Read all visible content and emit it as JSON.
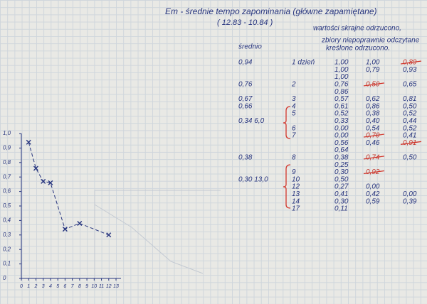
{
  "header": {
    "title": "Em - średnie tempo zapominania (główne zapamiętane)",
    "subtitle": "( 12.83 - 10.84 )",
    "notes": [
      "wartości skrajne odrzucono,",
      "zbiory niepoprawnie odczytane",
      "kreślone odrzucono."
    ]
  },
  "table": {
    "avg_header": "średnio",
    "rows": [
      {
        "avg": "0,94",
        "day": "1 dzień",
        "cols": [
          "1,00",
          "1,00",
          {
            "text": "0,89",
            "struck": true
          }
        ]
      },
      {
        "cols": [
          "1,00",
          "0,79",
          "0,93"
        ]
      },
      {
        "cols": [
          "1,00",
          null,
          null
        ]
      },
      {
        "avg": "0,76",
        "day": "2",
        "cols": [
          "0,76",
          {
            "text": "0,50",
            "struck": true
          },
          "0,65"
        ]
      },
      {
        "cols": [
          "0,86",
          null,
          null
        ]
      },
      {
        "avg": "0,67",
        "day": "3",
        "cols": [
          "0,57",
          "0,62",
          "0,81"
        ]
      },
      {
        "avg": "0,66",
        "day": "4",
        "cols": [
          "0,61",
          "0,86",
          "0,50"
        ]
      },
      {
        "day": "5",
        "cols": [
          "0,52",
          "0,38",
          "0,52"
        ]
      },
      {
        "avg": "0,34  6,0",
        "cols": [
          "0,33",
          "0,40",
          "0,44"
        ]
      },
      {
        "day": "6",
        "cols": [
          "0,00",
          "0,54",
          "0,52"
        ]
      },
      {
        "day": "7",
        "cols": [
          "0,00",
          {
            "text": "0,70",
            "struck": true
          },
          "0,41"
        ]
      },
      {
        "cols": [
          "0,56",
          "0,46",
          {
            "text": "0,91",
            "struck": true
          }
        ]
      },
      {
        "cols": [
          "0,64",
          null,
          null
        ]
      },
      {
        "avg": "0,38",
        "day": "8",
        "cols": [
          "0,38",
          {
            "text": "0,74",
            "struck": true
          },
          "0,50"
        ]
      },
      {
        "cols": [
          "0,25",
          null,
          null
        ]
      },
      {
        "day": "9",
        "cols": [
          "0,30",
          {
            "text": "0,92",
            "struck": true
          },
          null
        ]
      },
      {
        "avg": "0,30  13,0",
        "day": "10",
        "cols": [
          "0,50",
          null,
          null
        ]
      },
      {
        "day": "12",
        "cols": [
          "0,27",
          "0,00",
          null
        ]
      },
      {
        "day": "13",
        "cols": [
          "0,41",
          "0,42",
          "0,00"
        ]
      },
      {
        "day": "14",
        "cols": [
          "0,30",
          "0,59",
          "0,39"
        ]
      },
      {
        "day": "17",
        "cols": [
          "0,11",
          null,
          null
        ]
      }
    ]
  },
  "chart": {
    "xlim": [
      0,
      13
    ],
    "ylim": [
      0,
      1
    ],
    "xticks": [
      0,
      1,
      2,
      3,
      4,
      5,
      6,
      7,
      8,
      9,
      10,
      11,
      12,
      13
    ],
    "yticks": [
      0,
      {
        "value": 0.1,
        "label": "0,1"
      },
      {
        "value": 0.2,
        "label": "0,2"
      },
      {
        "value": 0.3,
        "label": "0,3"
      },
      {
        "value": 0.4,
        "label": "0,4"
      },
      {
        "value": 0.5,
        "label": "0,5"
      },
      {
        "value": 0.6,
        "label": "0,6"
      },
      {
        "value": 0.7,
        "label": "0,7"
      },
      {
        "value": 0.8,
        "label": "0,8"
      },
      {
        "value": 0.9,
        "label": "0,9"
      },
      {
        "value": 1,
        "label": "1,0"
      }
    ],
    "x": [
      1,
      2,
      3,
      4,
      6,
      8,
      12
    ],
    "values": [
      0.94,
      0.76,
      0.67,
      0.66,
      0.34,
      0.38,
      0.3
    ]
  }
}
